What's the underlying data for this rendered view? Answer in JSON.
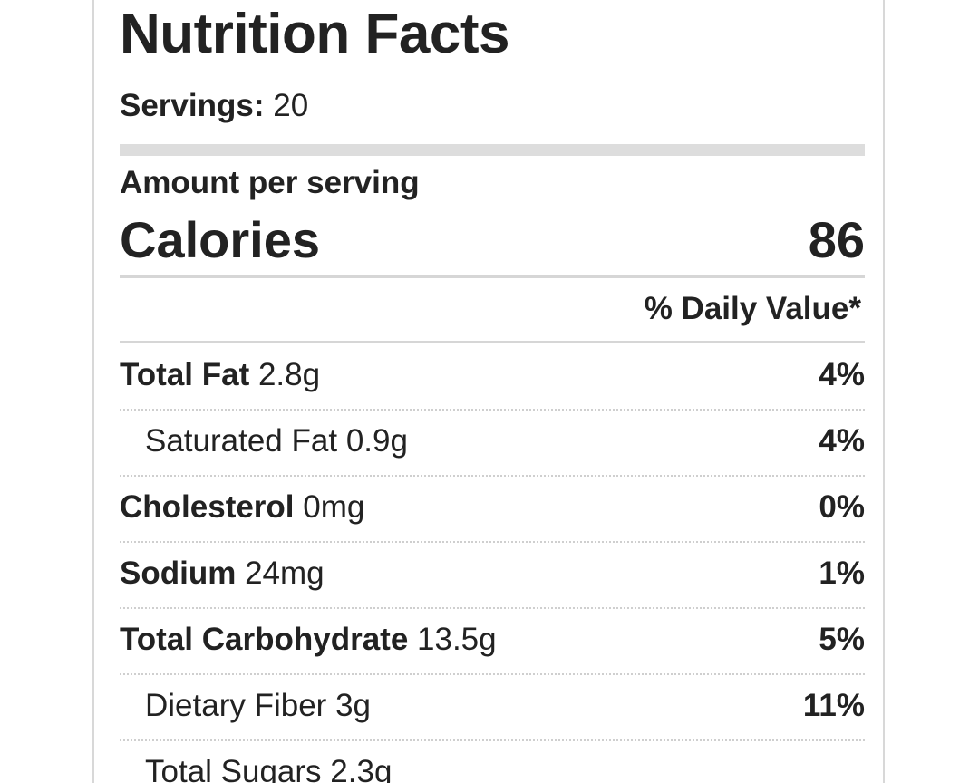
{
  "label": {
    "title": "Nutrition Facts",
    "servings_label": "Servings:",
    "servings_value": "20",
    "amount_per_serving": "Amount per serving",
    "calories_label": "Calories",
    "calories_value": "86",
    "daily_value_header": "% Daily Value*",
    "nutrients": [
      {
        "name": "Total Fat",
        "amount": "2.8g",
        "dv": "4%",
        "sub": false
      },
      {
        "name": "Saturated Fat",
        "amount": "0.9g",
        "dv": "4%",
        "sub": true
      },
      {
        "name": "Cholesterol",
        "amount": "0mg",
        "dv": "0%",
        "sub": false
      },
      {
        "name": "Sodium",
        "amount": "24mg",
        "dv": "1%",
        "sub": false
      },
      {
        "name": "Total Carbohydrate",
        "amount": "13.5g",
        "dv": "5%",
        "sub": false
      },
      {
        "name": "Dietary Fiber",
        "amount": "3g",
        "dv": "11%",
        "sub": true
      },
      {
        "name": "Total Sugars",
        "amount": "2.3g",
        "dv": "",
        "sub": true
      }
    ]
  }
}
